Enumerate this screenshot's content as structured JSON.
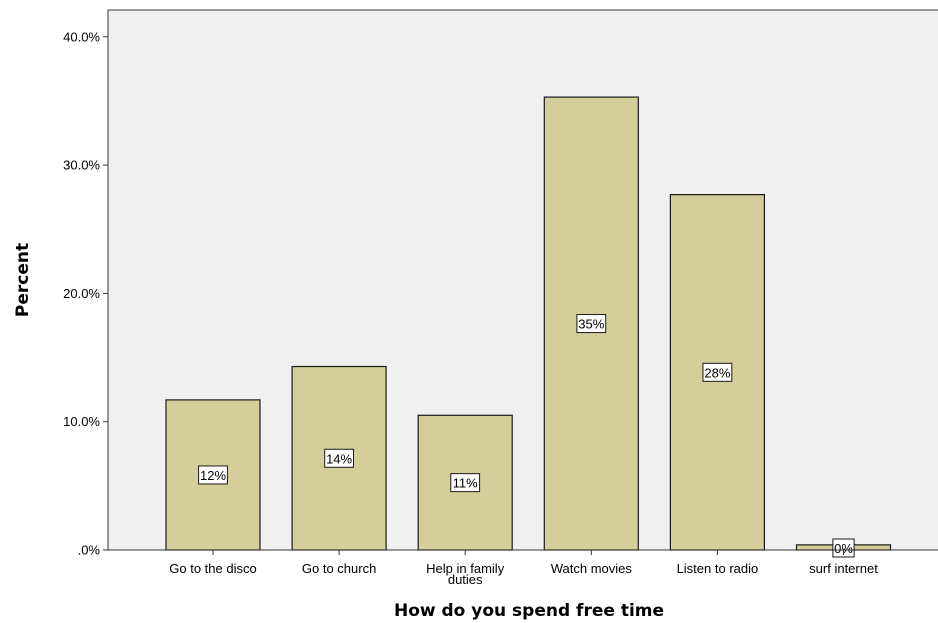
{
  "chart_data": {
    "type": "bar",
    "title": "",
    "xlabel": "How do you spend free time",
    "ylabel": "Percent",
    "categories": [
      [
        "Go to the disco"
      ],
      [
        "Go to church"
      ],
      [
        "Help in family",
        "duties"
      ],
      [
        "Watch movies"
      ],
      [
        "Listen to radio"
      ],
      [
        "surf internet"
      ]
    ],
    "values": [
      11.7,
      14.3,
      10.5,
      35.3,
      27.7,
      0.4
    ],
    "data_labels": [
      "12%",
      "14%",
      "11%",
      "35%",
      "28%",
      "0%"
    ],
    "yticks": [
      0,
      10,
      20,
      30,
      40
    ],
    "ytick_labels": [
      ".0%",
      "10.0%",
      "20.0%",
      "30.0%",
      "40.0%"
    ],
    "ylim": [
      0,
      42
    ],
    "grid": false,
    "colors": {
      "bar_fill": "#d3ce9a",
      "bar_stroke": "#1a1a1a",
      "plot_bg": "#f0f0f0",
      "axis": "#333333",
      "label_box_bg": "#ffffff"
    }
  }
}
